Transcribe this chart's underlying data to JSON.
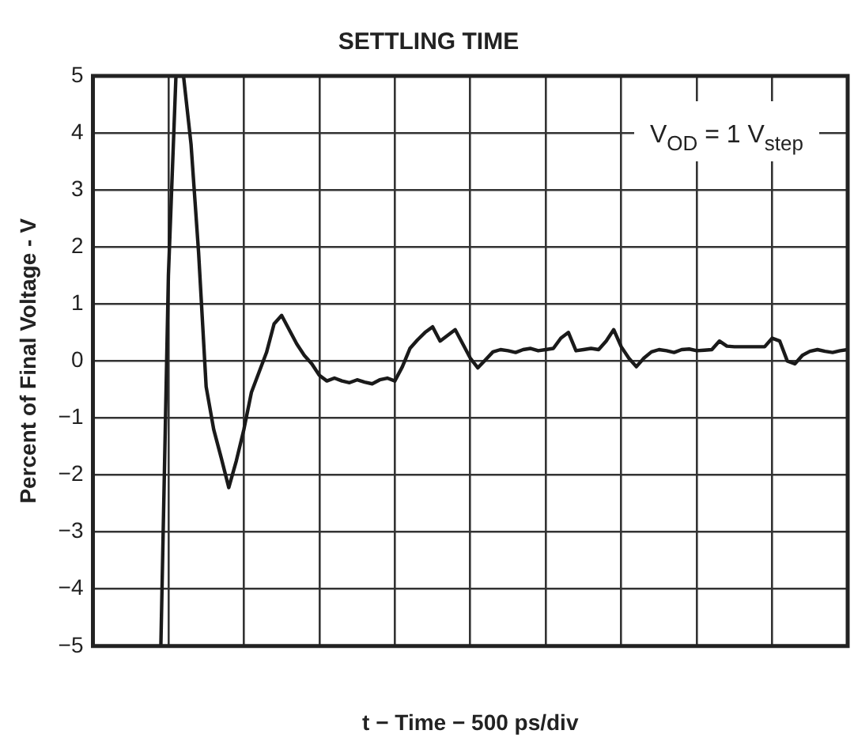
{
  "chart_data": {
    "type": "line",
    "title": "SETTLING TIME",
    "xlabel": "t − Time − 500 ps/div",
    "ylabel": "Percent of Final Voltage - V",
    "annotations": [
      "V$_{OD}$ = 1 V$_{step}$"
    ],
    "categories": [
      null,
      null,
      null,
      null,
      null,
      null,
      null,
      null,
      null,
      null,
      null,
      null,
      null,
      null,
      null,
      null,
      null,
      null,
      null,
      null,
      null,
      null,
      null,
      null,
      null,
      null,
      null,
      null,
      null,
      null,
      null,
      null,
      null,
      null,
      null,
      null,
      null,
      null,
      null,
      null,
      null,
      null,
      null,
      null,
      null,
      null,
      null,
      null,
      null,
      null,
      null,
      null,
      null,
      null,
      null,
      null,
      null,
      null,
      null,
      null,
      null,
      null,
      null,
      null,
      null,
      null,
      null,
      null,
      null,
      null,
      null,
      null,
      null,
      null,
      null,
      null,
      null,
      null,
      null,
      null,
      null,
      null,
      null,
      null,
      null,
      null,
      null,
      null,
      null,
      null,
      null,
      null,
      null,
      null,
      null,
      null,
      null,
      null,
      null,
      null,
      null
    ],
    "ylim": [
      -5,
      5
    ],
    "yticks": [
      {
        "value": -5,
        "label": "−5"
      },
      {
        "value": -4,
        "label": "−4"
      },
      {
        "value": -3,
        "label": "−3"
      },
      {
        "value": -2,
        "label": "−2"
      },
      {
        "value": -1,
        "label": "−1"
      },
      0,
      1,
      2,
      3,
      4,
      5
    ],
    "grid": true,
    "marker": "none",
    "line_style": "solid",
    "series": [
      {
        "color": "#1a1a1a",
        "values": [
          null,
          null,
          null,
          null,
          null,
          null,
          null,
          null,
          null,
          -5,
          1.5,
          5,
          5,
          3.8,
          1.9,
          -0.45,
          -1.2,
          -1.7,
          -2.22,
          -1.75,
          -1.2,
          -0.55,
          -0.2,
          0.15,
          0.65,
          0.8,
          0.55,
          0.3,
          0.1,
          -0.05,
          -0.25,
          -0.35,
          -0.3,
          -0.35,
          -0.38,
          -0.33,
          -0.37,
          -0.4,
          -0.33,
          -0.3,
          -0.35,
          -0.1,
          0.22,
          0.37,
          0.5,
          0.6,
          0.35,
          0.45,
          0.55,
          0.3,
          0.05,
          -0.12,
          0.02,
          0.16,
          0.2,
          0.18,
          0.15,
          0.2,
          0.22,
          0.18,
          0.2,
          0.22,
          0.4,
          0.5,
          0.18,
          0.2,
          0.22,
          0.2,
          0.35,
          0.55,
          0.25,
          0.05,
          -0.1,
          0.05,
          0.16,
          0.2,
          0.18,
          0.15,
          0.2,
          0.21,
          0.18,
          0.19,
          0.2,
          0.35,
          0.26,
          0.25,
          0.25,
          0.25,
          0.25,
          0.25,
          0.4,
          0.35,
          0,
          -0.05,
          0.1,
          0.17,
          0.2,
          0.17,
          0.15,
          0.18,
          0.2
        ]
      }
    ]
  }
}
